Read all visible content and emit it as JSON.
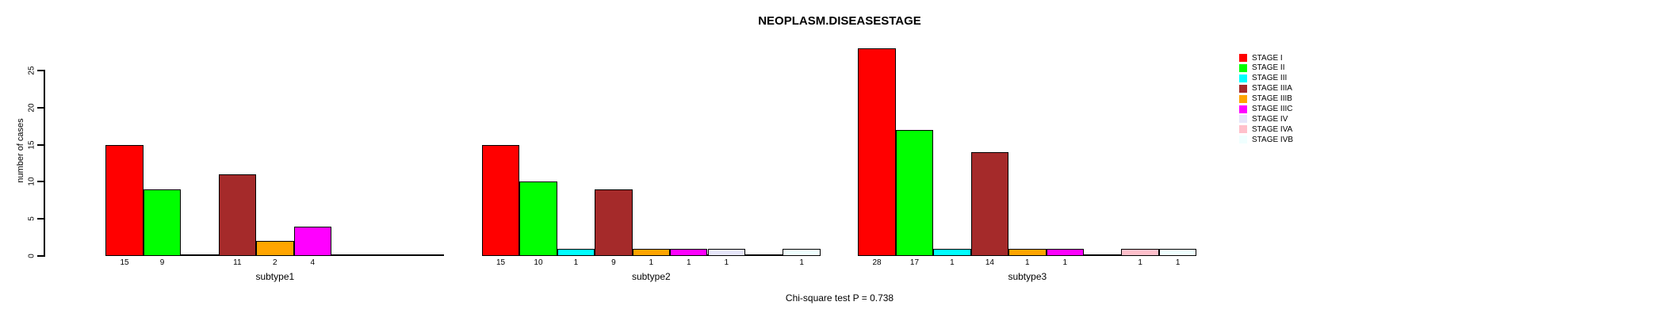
{
  "chart_data": {
    "type": "bar",
    "title": "NEOPLASM.DISEASESTAGE",
    "ylabel": "number of cases",
    "xlabel": "",
    "yticks": [
      0,
      5,
      10,
      15,
      20,
      25
    ],
    "ylim": [
      0,
      28
    ],
    "grid": false,
    "legend_position": "right",
    "stages": [
      {
        "label": "STAGE I",
        "color": "#FF0000"
      },
      {
        "label": "STAGE II",
        "color": "#00FF00"
      },
      {
        "label": "STAGE III",
        "color": "#00FFFF"
      },
      {
        "label": "STAGE IIIA",
        "color": "#A52A2A"
      },
      {
        "label": "STAGE IIIB",
        "color": "#FFA500"
      },
      {
        "label": "STAGE IIIC",
        "color": "#FF00FF"
      },
      {
        "label": "STAGE IV",
        "color": "#E6E6FA"
      },
      {
        "label": "STAGE IVA",
        "color": "#FFC0CB"
      },
      {
        "label": "STAGE IVB",
        "color": "#F0FFFF"
      }
    ],
    "groups": [
      {
        "label": "subtype1",
        "values": [
          15,
          9,
          0,
          11,
          2,
          4,
          0,
          0,
          0
        ]
      },
      {
        "label": "subtype2",
        "values": [
          15,
          10,
          1,
          9,
          1,
          1,
          1,
          0,
          1
        ]
      },
      {
        "label": "subtype3",
        "values": [
          28,
          17,
          1,
          14,
          1,
          1,
          0,
          1,
          1
        ]
      }
    ],
    "annotation": "Chi-square test P = 0.738"
  }
}
